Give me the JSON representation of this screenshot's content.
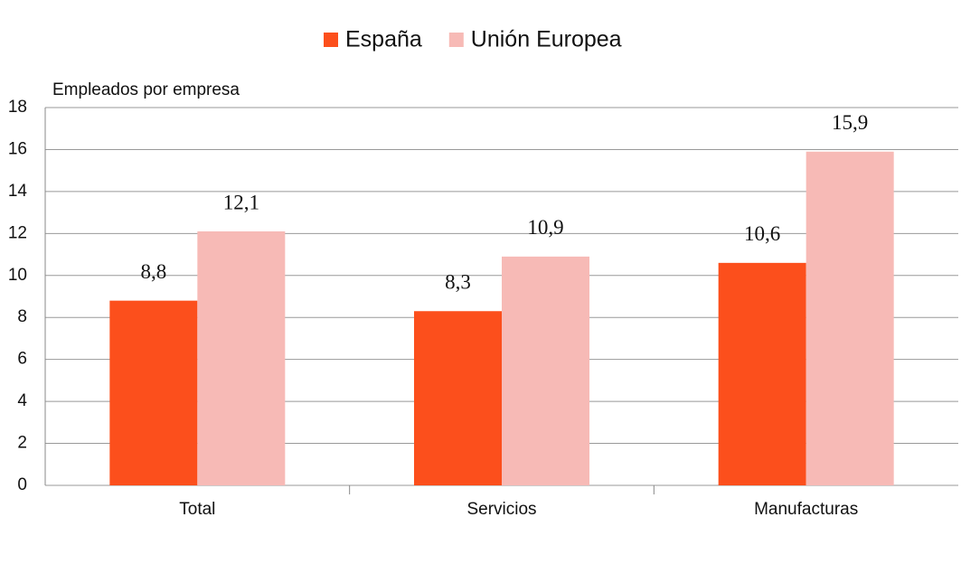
{
  "chart_data": {
    "type": "bar",
    "y_label": "Empleados por empresa",
    "categories": [
      "Total",
      "Servicios",
      "Manufacturas"
    ],
    "series": [
      {
        "name": "España",
        "color": "#fc4f1c",
        "values": [
          8.8,
          8.3,
          10.6
        ],
        "value_labels": [
          "8,8",
          "8,3",
          "10,6"
        ]
      },
      {
        "name": "Unión Europea",
        "color": "#f7bab6",
        "values": [
          12.1,
          10.9,
          15.9
        ],
        "value_labels": [
          "12,1",
          "10,9",
          "15,9"
        ]
      }
    ],
    "ylim": [
      0,
      18
    ],
    "yticks": [
      0,
      2,
      4,
      6,
      8,
      10,
      12,
      14,
      16,
      18
    ],
    "grid": true,
    "legend": "top"
  }
}
